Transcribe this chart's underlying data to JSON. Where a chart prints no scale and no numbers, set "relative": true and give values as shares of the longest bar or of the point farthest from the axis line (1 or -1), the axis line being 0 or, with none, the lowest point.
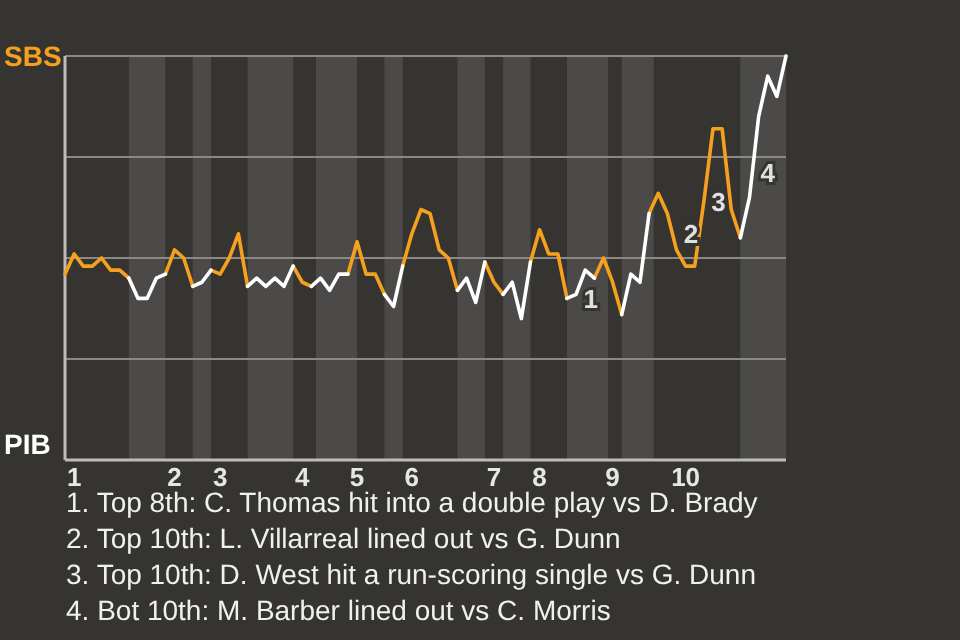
{
  "chart_data": {
    "type": "line",
    "relative": true,
    "categories": [
      null,
      "1",
      null,
      null,
      null,
      null,
      null,
      null,
      null,
      null,
      null,
      null,
      "2",
      null,
      null,
      null,
      null,
      "3",
      null,
      null,
      null,
      null,
      null,
      null,
      null,
      null,
      "4",
      null,
      null,
      null,
      null,
      null,
      "5",
      null,
      null,
      null,
      null,
      null,
      "6",
      null,
      null,
      null,
      null,
      null,
      null,
      null,
      null,
      "7",
      null,
      null,
      null,
      null,
      "8",
      null,
      null,
      null,
      null,
      null,
      null,
      null,
      "9",
      null,
      null,
      null,
      null,
      null,
      null,
      null,
      "10",
      null,
      null,
      null,
      null,
      null,
      null,
      null,
      null,
      null,
      null,
      null
    ],
    "grid": "y",
    "marker": "none",
    "line_style": "solid",
    "series": [
      {
        "color": "#f5a01e",
        "values": [
          0.46,
          0.51,
          0.48,
          0.48,
          0.5,
          0.47,
          0.47,
          0.45,
          null,
          null,
          null,
          0.46,
          0.52,
          0.5,
          0.43,
          null,
          0.47,
          0.46,
          0.5,
          0.56,
          0.43,
          null,
          null,
          null,
          null,
          0.48,
          0.44,
          0.43,
          null,
          null,
          null,
          0.46,
          0.54,
          0.46,
          0.46,
          0.41,
          null,
          0.48,
          0.56,
          0.62,
          0.61,
          0.52,
          0.5,
          0.42,
          null,
          null,
          0.49,
          0.44,
          0.41,
          null,
          null,
          0.49,
          0.57,
          0.51,
          0.51,
          0.4,
          null,
          null,
          0.45,
          0.5,
          0.44,
          0.36,
          null,
          null,
          0.61,
          0.66,
          0.61,
          0.52,
          0.48,
          0.48,
          0.64,
          0.82,
          0.82,
          0.62,
          0.55,
          null,
          null,
          null,
          null,
          null
        ]
      },
      {
        "color": "#ffffff",
        "values": [
          null,
          null,
          null,
          null,
          null,
          null,
          null,
          0.45,
          0.4,
          0.4,
          0.45,
          0.46,
          null,
          null,
          0.43,
          0.44,
          0.47,
          null,
          null,
          null,
          0.43,
          0.45,
          0.43,
          0.45,
          0.43,
          0.48,
          null,
          0.43,
          0.45,
          0.42,
          0.46,
          0.46,
          null,
          null,
          null,
          0.41,
          0.38,
          0.48,
          null,
          null,
          null,
          null,
          null,
          0.42,
          0.45,
          0.39,
          0.49,
          null,
          0.41,
          0.44,
          0.35,
          0.49,
          null,
          null,
          null,
          0.4,
          0.41,
          0.47,
          0.45,
          null,
          null,
          0.36,
          0.46,
          0.44,
          0.61,
          null,
          null,
          null,
          null,
          null,
          null,
          null,
          null,
          null,
          0.55,
          0.65,
          0.85,
          0.95,
          0.9,
          1
        ]
      }
    ],
    "annotations": [
      "SBS",
      "PIB",
      "1",
      "2",
      "3",
      "4",
      "1. Top 8th: C. Thomas hit into a double play vs D. Brady",
      "2. Top 10th: L. Villarreal lined out vs G. Dunn",
      "3. Top 10th: D. West hit a run-scoring single vs G. Dunn",
      "4. Bot 10th: M. Barber lined out vs C. Morris"
    ]
  }
}
